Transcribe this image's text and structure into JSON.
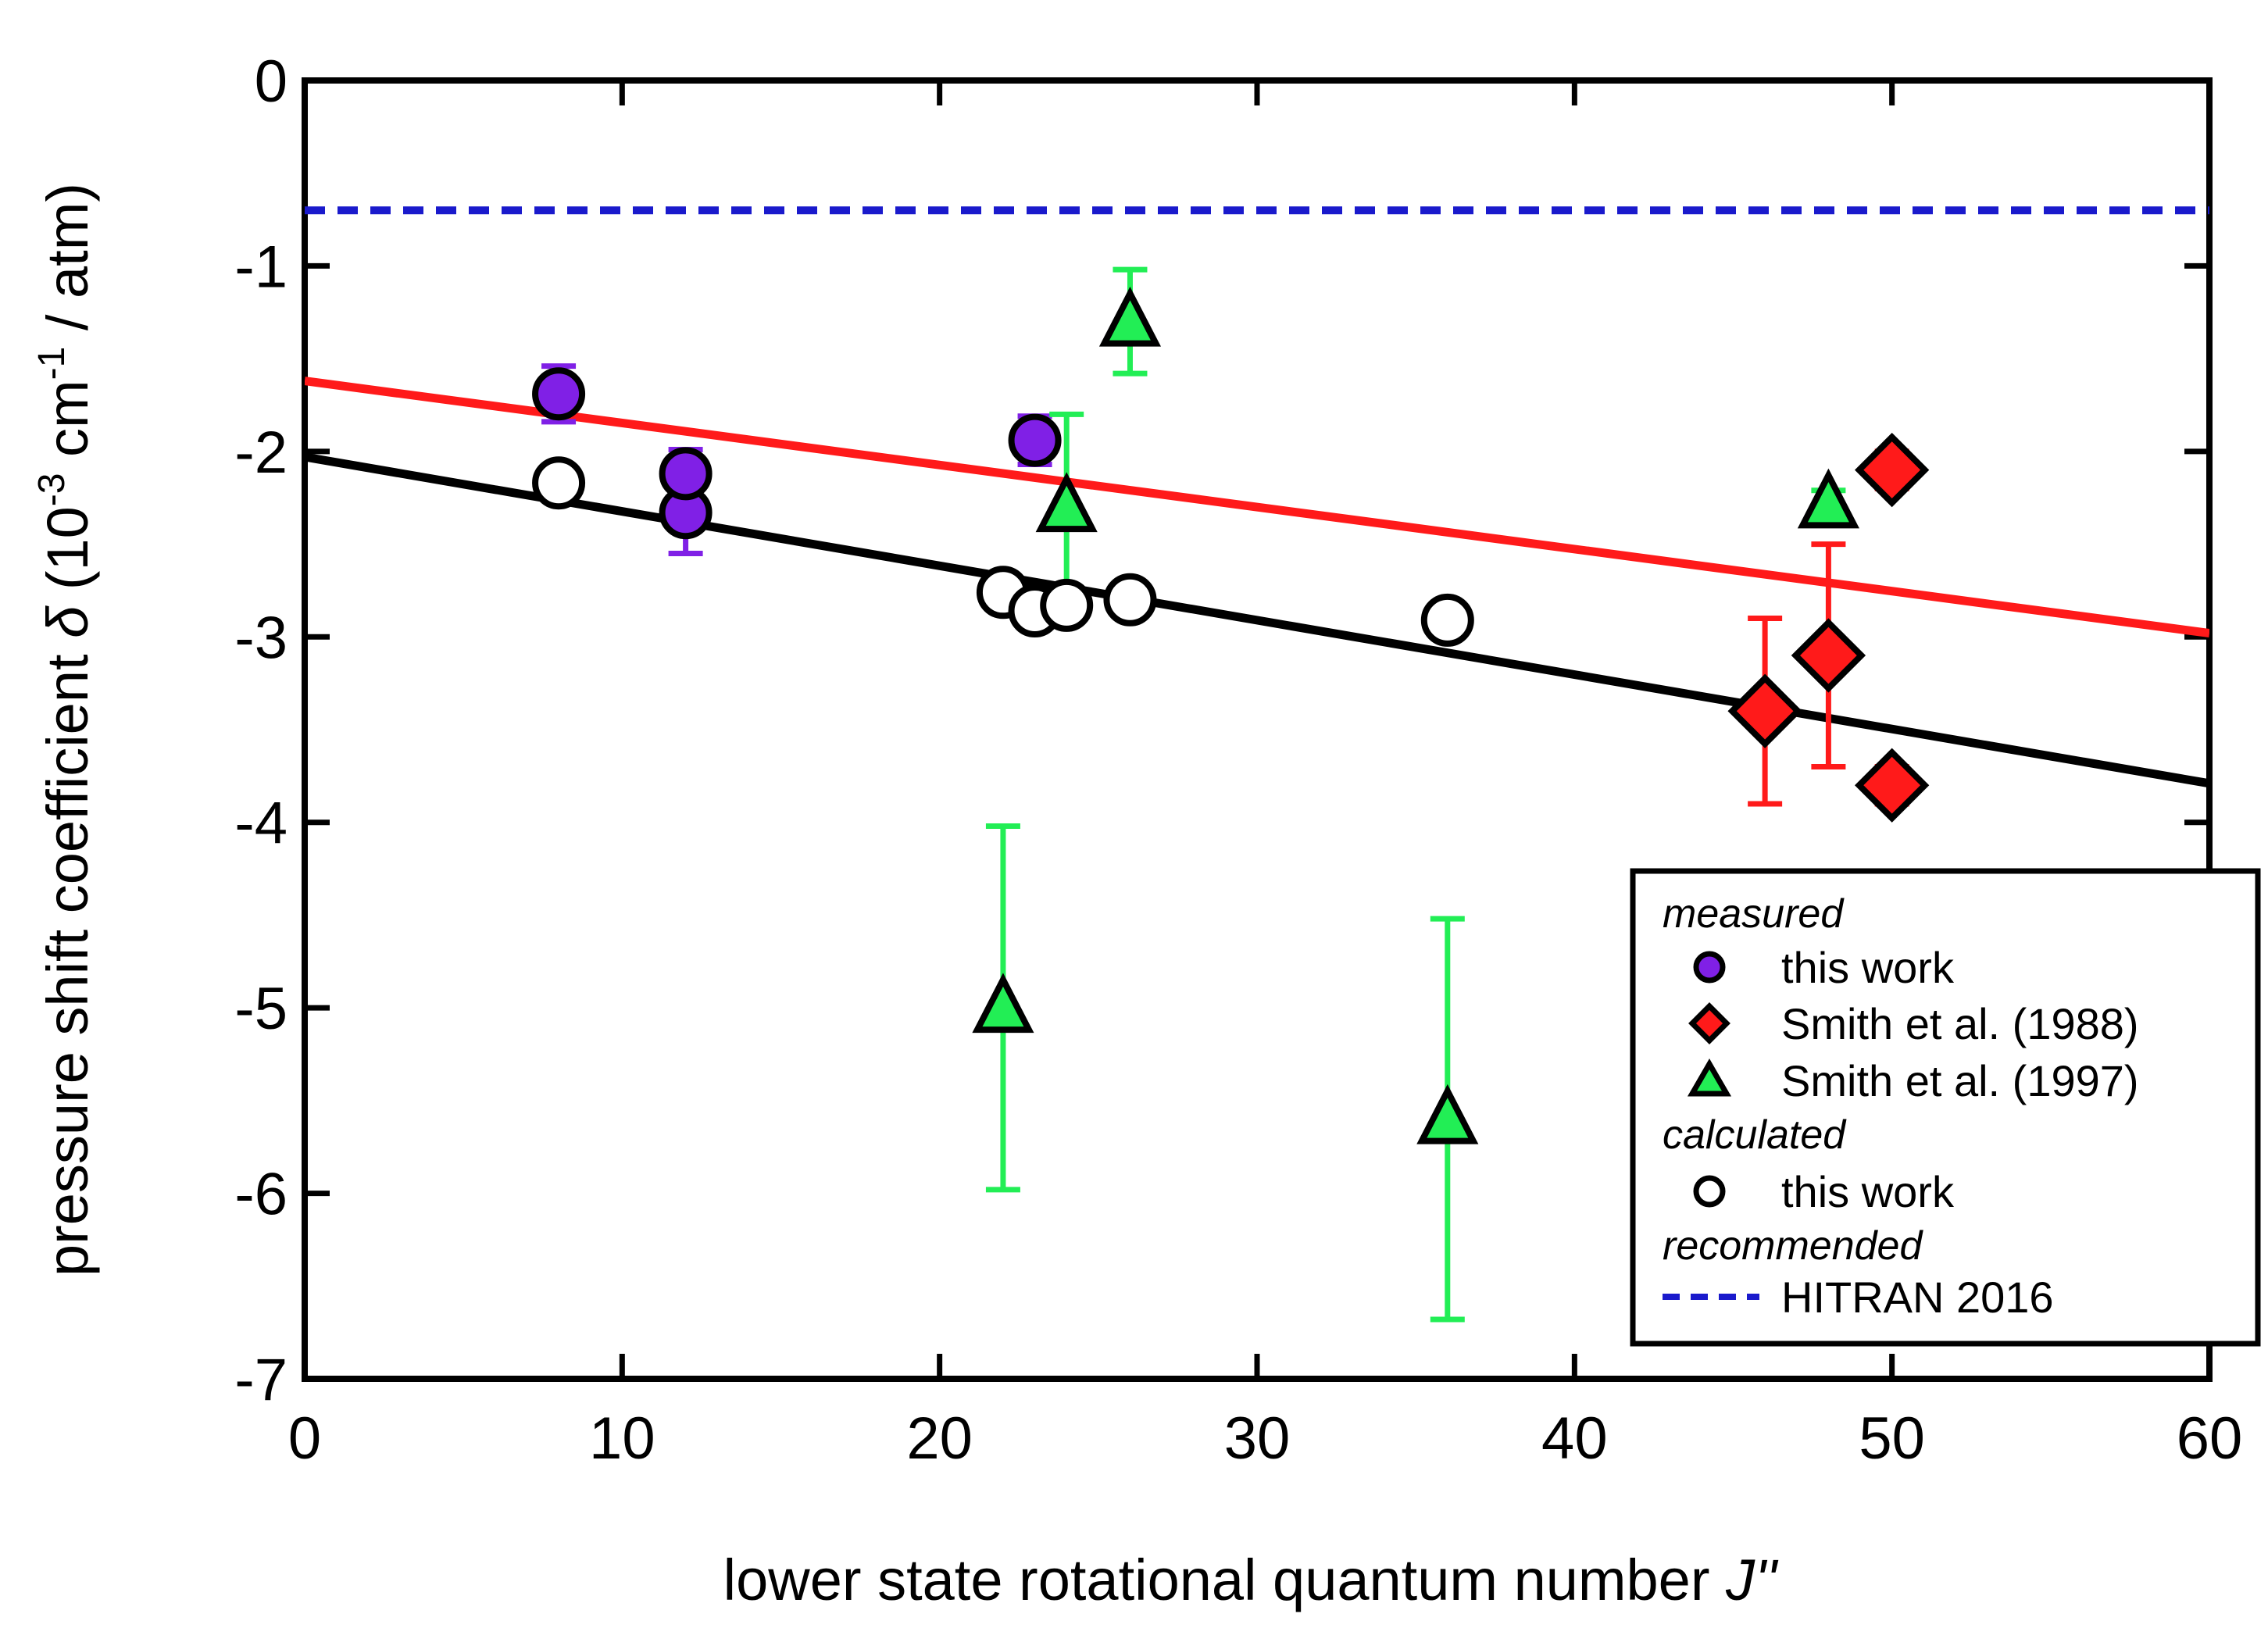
{
  "chart_data": {
    "type": "scatter",
    "xlabel": {
      "text": "lower state rotational quantum number ",
      "symbol": "J''"
    },
    "ylabel": {
      "prefix": "pressure shift coefficient ",
      "symbol": "δ",
      "paren_open": " (10",
      "exp1": "-3",
      "unit_mid": " cm",
      "exp2": "-1",
      "suffix": " / atm)"
    },
    "xlim": [
      0,
      60
    ],
    "ylim": [
      -7,
      0
    ],
    "xticks": [
      0,
      10,
      20,
      30,
      40,
      50,
      60
    ],
    "yticks": [
      0,
      -1,
      -2,
      -3,
      -4,
      -5,
      -6,
      -7
    ],
    "xtick_labels": [
      "0",
      "10",
      "20",
      "30",
      "40",
      "50",
      "60"
    ],
    "ytick_labels": [
      "0",
      "-1",
      "-2",
      "-3",
      "-4",
      "-5",
      "-6",
      "-7"
    ],
    "grid": false,
    "legend_position": "bottom-right",
    "series": [
      {
        "name": "this work (measured)",
        "group": "measured",
        "marker": "circle",
        "color": "#8020e6",
        "points": [
          {
            "x": 8,
            "y": -1.69,
            "err": 0.15
          },
          {
            "x": 12,
            "y": -2.33,
            "err": 0.22
          },
          {
            "x": 12,
            "y": -2.12,
            "err": 0.13
          },
          {
            "x": 23,
            "y": -1.94,
            "err": 0.13
          }
        ]
      },
      {
        "name": "Smith et al. (1988)",
        "group": "measured",
        "marker": "diamond",
        "color": "#ff1a1a",
        "points": [
          {
            "x": 46,
            "y": -3.4,
            "err": 0.5
          },
          {
            "x": 48,
            "y": -3.1,
            "err": 0.6
          },
          {
            "x": 50,
            "y": -2.1,
            "err": 0.1
          },
          {
            "x": 50,
            "y": -3.8,
            "err": 0.1
          }
        ]
      },
      {
        "name": "Smith et al. (1997)",
        "group": "measured",
        "marker": "triangle",
        "color": "#22ee55",
        "points": [
          {
            "x": 22,
            "y": -5.0,
            "err": 0.98
          },
          {
            "x": 24,
            "y": -2.3,
            "err": 0.5
          },
          {
            "x": 26,
            "y": -1.3,
            "err": 0.28
          },
          {
            "x": 36,
            "y": -5.6,
            "err": 1.08
          },
          {
            "x": 48,
            "y": -2.28,
            "err": 0.07
          }
        ]
      },
      {
        "name": "this work (calculated)",
        "group": "calculated",
        "marker": "open-circle",
        "color": "#ffffff",
        "points": [
          {
            "x": 8,
            "y": -2.17
          },
          {
            "x": 22,
            "y": -2.76
          },
          {
            "x": 23,
            "y": -2.86
          },
          {
            "x": 24,
            "y": -2.83
          },
          {
            "x": 26,
            "y": -2.8
          },
          {
            "x": 36,
            "y": -2.91
          }
        ]
      }
    ],
    "fit_lines": [
      {
        "name": "measured fit",
        "color": "#ff1a1a",
        "x": [
          0,
          60
        ],
        "y": [
          -1.62,
          -2.98
        ]
      },
      {
        "name": "calculated fit",
        "color": "#000000",
        "x": [
          0,
          60
        ],
        "y": [
          -2.03,
          -3.79
        ]
      }
    ],
    "reference_lines": [
      {
        "name": "HITRAN 2016",
        "group": "recommended",
        "color": "#1a1acc",
        "style": "dashed",
        "y": -0.7
      }
    ],
    "legend": {
      "headings": {
        "measured": "measured",
        "calculated": "calculated",
        "recommended": "recommended"
      },
      "items": {
        "measured_this_work": "this work",
        "smith1988": "Smith et al. (1988)",
        "smith1997": "Smith et al. (1997)",
        "calculated_this_work": "this work",
        "hitran": "HITRAN 2016"
      }
    }
  }
}
